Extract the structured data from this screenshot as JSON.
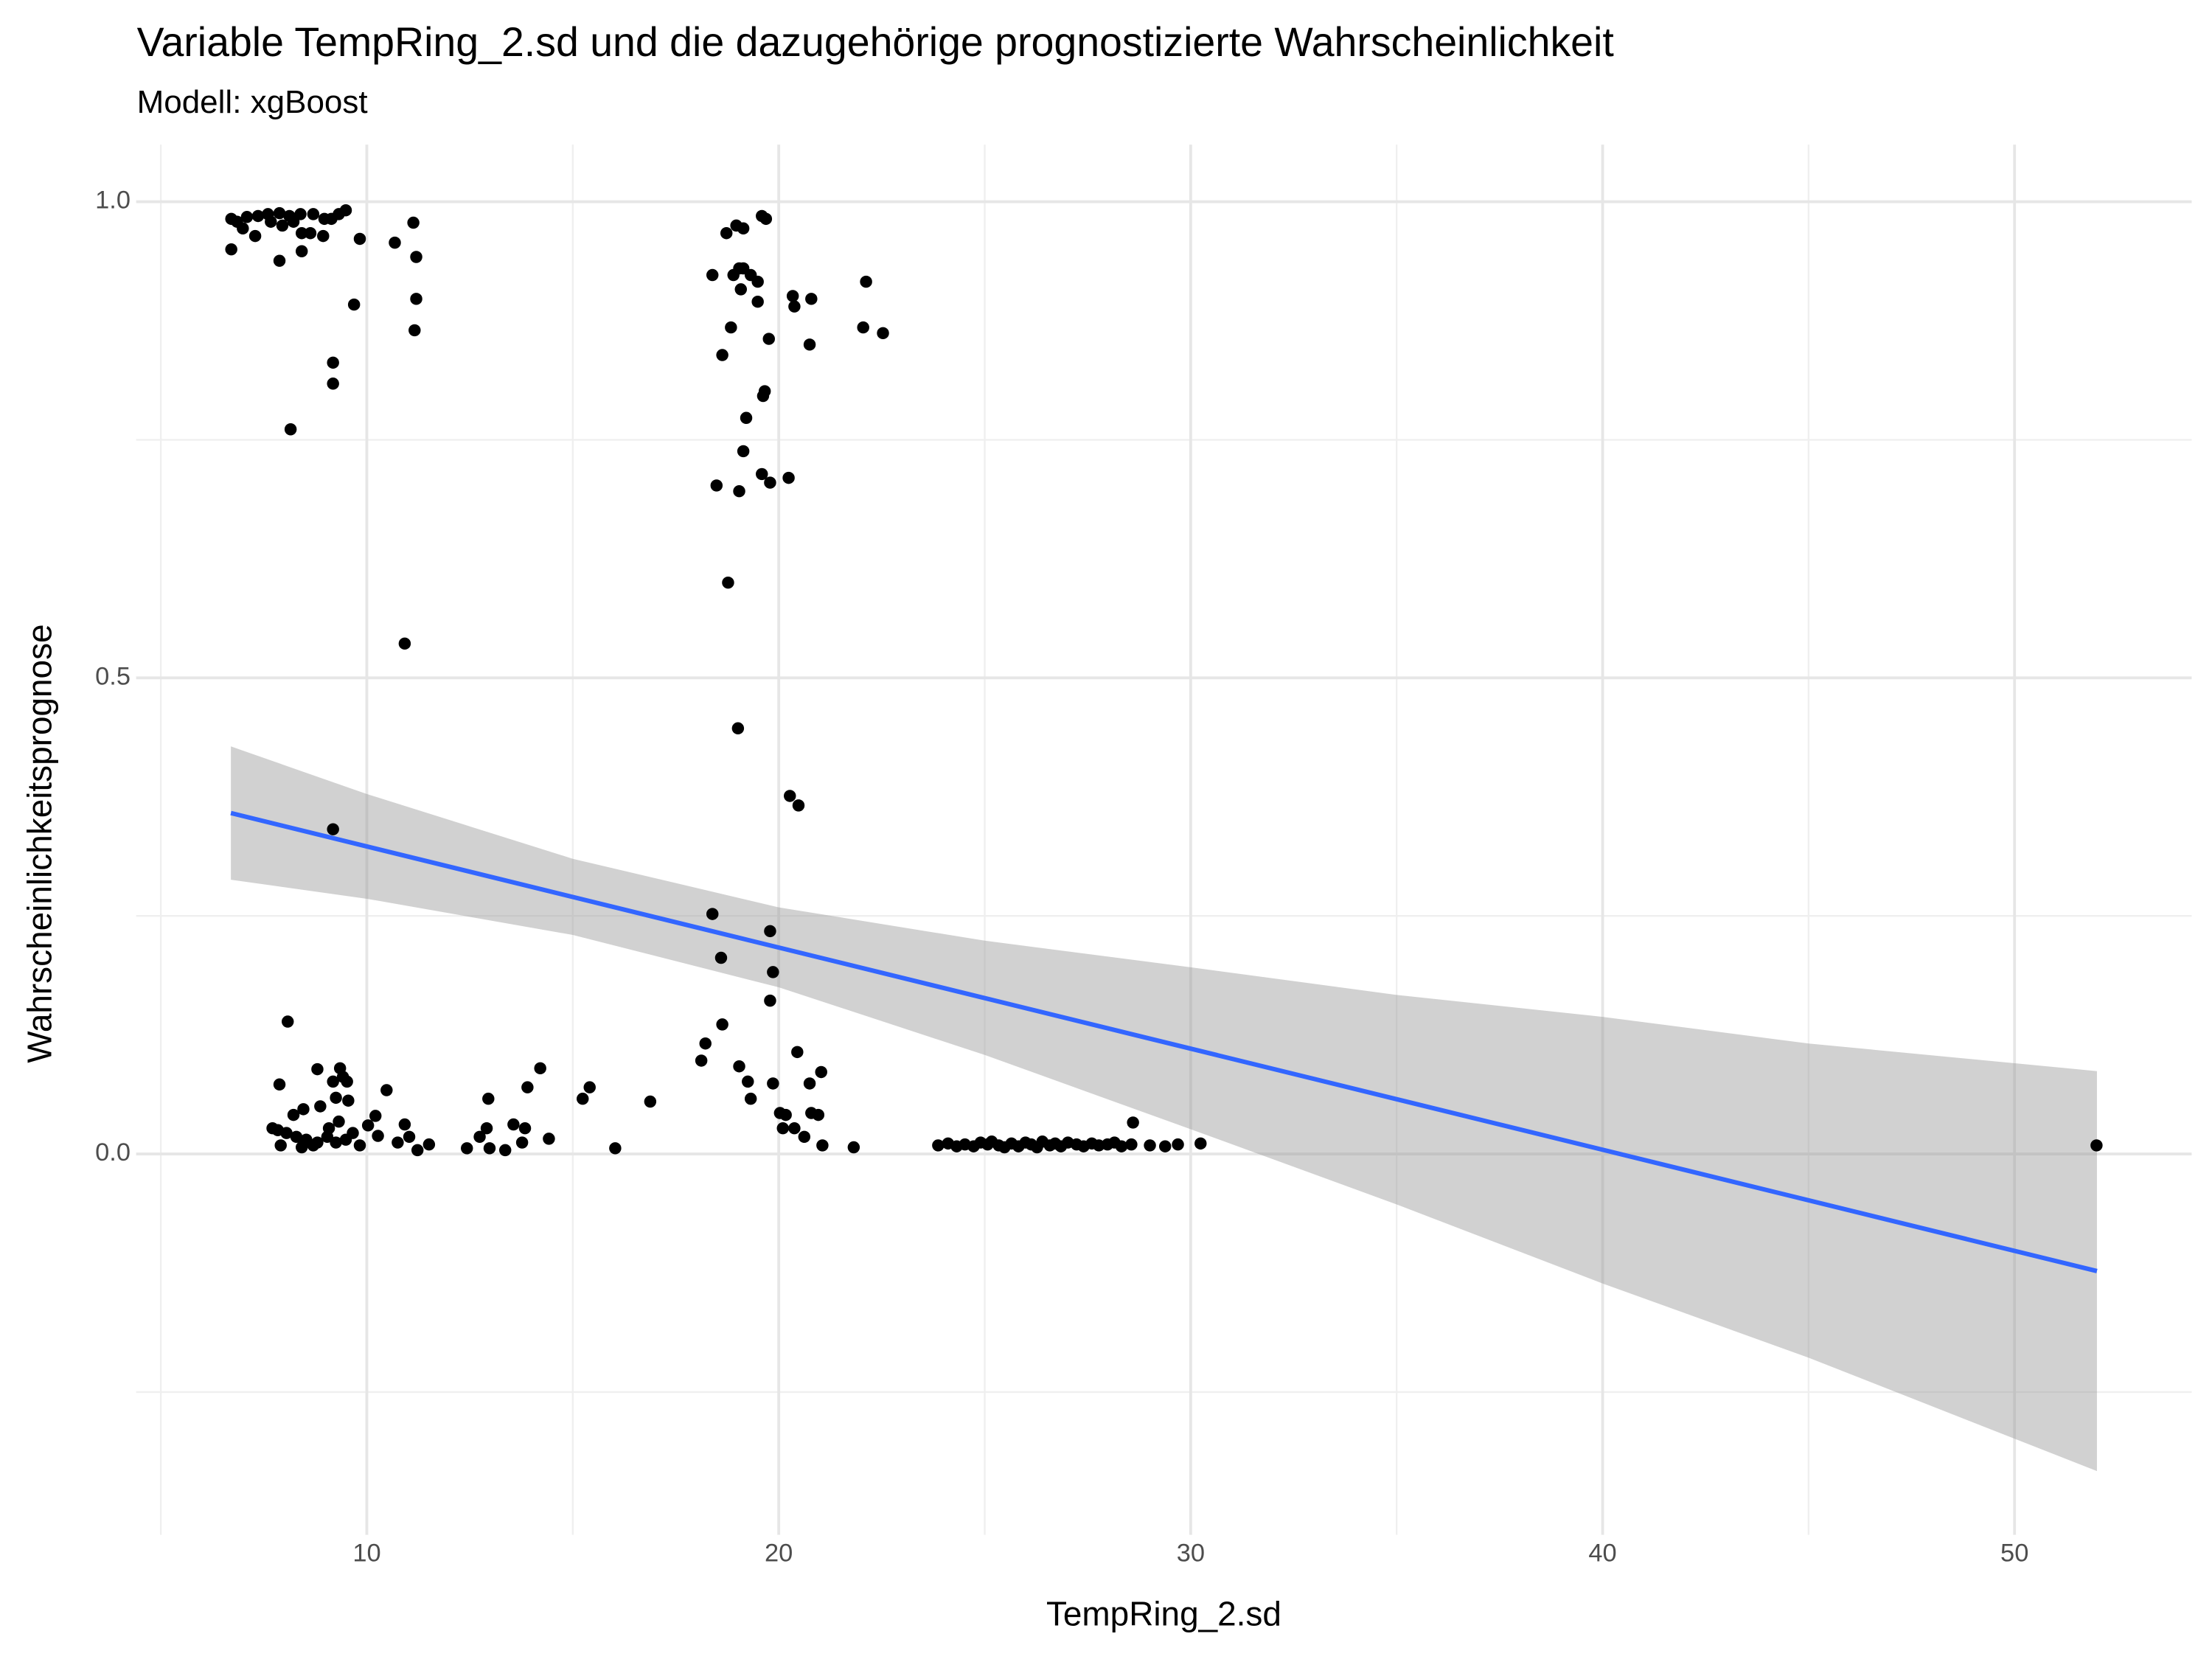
{
  "chart_data": {
    "type": "scatter",
    "title": "Variable TempRing_2.sd und die dazugehörige prognostizierte Wahrscheinlichkeit",
    "subtitle": "Modell: xgBoost",
    "x_label": "TempRing_2.sd",
    "y_label": "Wahrscheinlichkeitsprognose",
    "color": "#000000",
    "x": [
      6.71,
      6.85,
      7.09,
      7.36,
      7.6,
      7.88,
      8.12,
      8.39,
      8.7,
      8.97,
      9.32,
      9.49,
      6.99,
      7.29,
      7.67,
      7.95,
      8.22,
      8.42,
      8.63,
      6.71,
      7.88,
      8.42,
      8.94,
      9.14,
      9.83,
      10.68,
      11.13,
      9.69,
      11.2,
      11.2,
      11.16,
      9.18,
      9.18,
      8.15,
      10.92,
      9.18,
      18.39,
      18.73,
      18.97,
      19.14,
      18.9,
      19.04,
      19.14,
      19.32,
      19.49,
      19.59,
      19.69,
      19.08,
      19.49,
      18.84,
      19.76,
      18.63,
      20.34,
      20.38,
      20.79,
      20.75,
      22.12,
      22.05,
      22.53,
      19.66,
      19.62,
      19.21,
      19.14,
      19.59,
      19.79,
      20.24,
      18.49,
      19.04,
      18.77,
      19.01,
      20.27,
      20.48,
      18.39,
      19.79,
      18.6,
      19.86,
      19.79,
      8.08,
      7.88,
      8.8,
      9.35,
      9.42,
      9.52,
      9.18,
      9.55,
      9.25,
      8.87,
      8.46,
      8.22,
      7.71,
      7.84,
      8.05,
      8.29,
      8.53,
      8.8,
      9.04,
      9.25,
      9.49,
      9.66,
      9.83,
      10.03,
      10.21,
      10.27,
      10.48,
      10.75,
      10.92,
      11.23,
      11.51,
      11.03,
      7.91,
      8.42,
      8.7,
      9.08,
      9.32,
      12.43,
      12.74,
      12.95,
      12.91,
      12.98,
      13.36,
      13.56,
      13.9,
      13.84,
      14.21,
      14.42,
      13.77,
      15.24,
      15.41,
      16.03,
      16.88,
      18.12,
      18.22,
      18.63,
      19.04,
      19.25,
      19.32,
      19.86,
      20.03,
      20.1,
      20.45,
      20.62,
      20.75,
      20.79,
      21.03,
      20.96,
      21.06,
      21.82,
      20.17,
      20.38,
      23.87,
      24.11,
      24.32,
      24.52,
      24.73,
      24.9,
      25.07,
      25.17,
      25.34,
      25.48,
      25.65,
      25.82,
      25.99,
      26.13,
      26.27,
      26.4,
      26.58,
      26.71,
      26.85,
      27.02,
      27.23,
      27.4,
      27.6,
      27.77,
      27.98,
      28.15,
      28.32,
      28.56,
      28.6,
      29.01,
      29.38,
      29.69,
      30.24,
      51.99
    ],
    "values": [
      0.982,
      0.979,
      0.984,
      0.985,
      0.987,
      0.988,
      0.985,
      0.987,
      0.987,
      0.982,
      0.987,
      0.991,
      0.972,
      0.964,
      0.979,
      0.975,
      0.979,
      0.967,
      0.967,
      0.95,
      0.938,
      0.948,
      0.964,
      0.982,
      0.961,
      0.957,
      0.978,
      0.892,
      0.942,
      0.898,
      0.865,
      0.831,
      0.809,
      0.761,
      0.536,
      0.341,
      0.923,
      0.967,
      0.975,
      0.972,
      0.923,
      0.93,
      0.93,
      0.923,
      0.916,
      0.985,
      0.982,
      0.908,
      0.895,
      0.868,
      0.856,
      0.839,
      0.901,
      0.89,
      0.898,
      0.85,
      0.916,
      0.868,
      0.862,
      0.801,
      0.796,
      0.773,
      0.738,
      0.714,
      0.705,
      0.71,
      0.702,
      0.696,
      0.6,
      0.447,
      0.376,
      0.366,
      0.252,
      0.234,
      0.206,
      0.191,
      0.161,
      0.139,
      0.073,
      0.089,
      0.09,
      0.081,
      0.076,
      0.076,
      0.056,
      0.059,
      0.05,
      0.047,
      0.041,
      0.027,
      0.025,
      0.022,
      0.018,
      0.015,
      0.012,
      0.018,
      0.012,
      0.015,
      0.022,
      0.009,
      0.03,
      0.04,
      0.019,
      0.067,
      0.012,
      0.031,
      0.004,
      0.01,
      0.018,
      0.009,
      0.007,
      0.009,
      0.027,
      0.034,
      0.006,
      0.018,
      0.058,
      0.027,
      0.006,
      0.004,
      0.031,
      0.07,
      0.027,
      0.09,
      0.016,
      0.012,
      0.058,
      0.07,
      0.006,
      0.055,
      0.098,
      0.116,
      0.136,
      0.092,
      0.076,
      0.058,
      0.074,
      0.043,
      0.027,
      0.107,
      0.018,
      0.074,
      0.043,
      0.086,
      0.041,
      0.009,
      0.007,
      0.041,
      0.027,
      0.009,
      0.011,
      0.008,
      0.01,
      0.008,
      0.012,
      0.01,
      0.013,
      0.009,
      0.007,
      0.011,
      0.008,
      0.012,
      0.01,
      0.007,
      0.013,
      0.009,
      0.011,
      0.008,
      0.012,
      0.01,
      0.008,
      0.011,
      0.009,
      0.01,
      0.012,
      0.008,
      0.01,
      0.033,
      0.009,
      0.008,
      0.01,
      0.011,
      0.009
    ],
    "trend": {
      "x": [
        6.7,
        52
      ],
      "values": [
        0.358,
        -0.123
      ],
      "color": "#3366ff"
    },
    "band": {
      "x": [
        6.7,
        10,
        15,
        20,
        25,
        30,
        35,
        40,
        45,
        52
      ],
      "lower": [
        0.288,
        0.268,
        0.23,
        0.175,
        0.104,
        0.026,
        -0.053,
        -0.136,
        -0.214,
        -0.333
      ],
      "upper": [
        0.428,
        0.378,
        0.31,
        0.259,
        0.224,
        0.196,
        0.167,
        0.144,
        0.116,
        0.087
      ],
      "color": "#999999"
    },
    "xlim": [
      4.4,
      54.3
    ],
    "ylim": [
      -0.4,
      1.06
    ],
    "xticks": [
      10,
      20,
      30,
      40,
      50
    ],
    "yticks": [
      {
        "value": 0,
        "label": "0.0"
      },
      {
        "value": 0.5,
        "label": "0.5"
      },
      {
        "value": 1,
        "label": "1.0"
      }
    ],
    "xminor": [
      5,
      15,
      25,
      35,
      45
    ],
    "yminor": [
      -0.25,
      0.25,
      0.75
    ],
    "grid": true
  }
}
